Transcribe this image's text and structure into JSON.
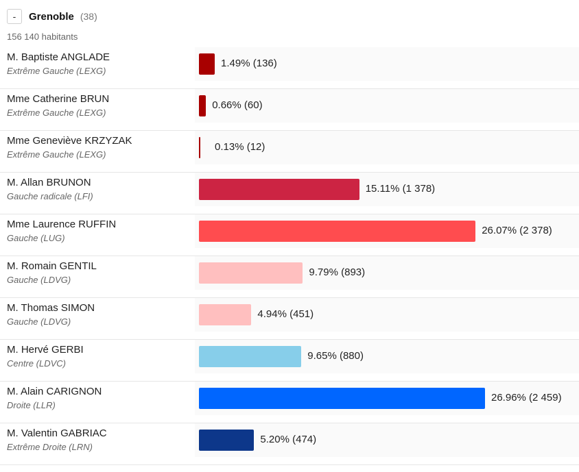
{
  "header": {
    "toggle_label": "-",
    "city": "Grenoble",
    "count": "(38)",
    "population": "156 140 habitants"
  },
  "chart_data": {
    "type": "bar",
    "orientation": "horizontal",
    "title": "Grenoble",
    "unit": "%",
    "categories": [
      "M. Baptiste ANGLADE",
      "Mme Catherine BRUN",
      "Mme Geneviève KRZYZAK",
      "M. Allan BRUNON",
      "Mme Laurence RUFFIN",
      "M. Romain GENTIL",
      "M. Thomas SIMON",
      "M. Hervé GERBI",
      "M. Alain CARIGNON",
      "M. Valentin GABRIAC"
    ],
    "values": [
      1.49,
      0.66,
      0.13,
      15.11,
      26.07,
      9.79,
      4.94,
      9.65,
      26.96,
      5.2
    ],
    "max_value": 26.96,
    "rows": [
      {
        "name": "M. Baptiste ANGLADE",
        "party": "Extrême Gauche (LEXG)",
        "percent": 1.49,
        "label": "1.49% (136)",
        "color": "#a80000"
      },
      {
        "name": "Mme Catherine BRUN",
        "party": "Extrême Gauche (LEXG)",
        "percent": 0.66,
        "label": "0.66% (60)",
        "color": "#a80000"
      },
      {
        "name": "Mme Geneviève KRZYZAK",
        "party": "Extrême Gauche (LEXG)",
        "percent": 0.13,
        "label": "0.13% (12)",
        "color": "#a80000"
      },
      {
        "name": "M. Allan BRUNON",
        "party": "Gauche radicale (LFI)",
        "percent": 15.11,
        "label": "15.11% (1 378)",
        "color": "#cc2443"
      },
      {
        "name": "Mme Laurence RUFFIN",
        "party": "Gauche (LUG)",
        "percent": 26.07,
        "label": "26.07% (2 378)",
        "color": "#ff4c4f"
      },
      {
        "name": "M. Romain GENTIL",
        "party": "Gauche (LDVG)",
        "percent": 9.79,
        "label": "9.79% (893)",
        "color": "#ffbfbf"
      },
      {
        "name": "M. Thomas SIMON",
        "party": "Gauche (LDVG)",
        "percent": 4.94,
        "label": "4.94% (451)",
        "color": "#ffbfbf"
      },
      {
        "name": "M. Hervé GERBI",
        "party": "Centre (LDVC)",
        "percent": 9.65,
        "label": "9.65% (880)",
        "color": "#87ceea"
      },
      {
        "name": "M. Alain CARIGNON",
        "party": "Droite (LLR)",
        "percent": 26.96,
        "label": "26.96% (2 459)",
        "color": "#0066ff"
      },
      {
        "name": "M. Valentin GABRIAC",
        "party": "Extrême Droite (LRN)",
        "percent": 5.2,
        "label": "5.20% (474)",
        "color": "#0d378a"
      }
    ]
  }
}
